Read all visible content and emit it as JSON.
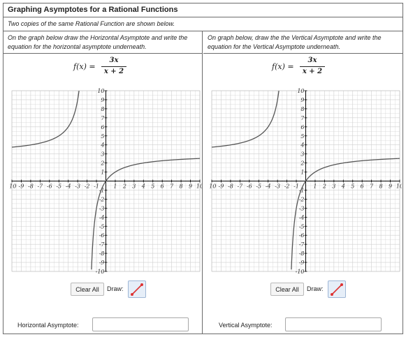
{
  "title": "Graphing Asymptotes for a Rational Functions",
  "subtitle": "Two copies of the same Rational Function are shown below.",
  "panels": [
    {
      "instruction": "On the graph below draw the Horizontal Asymptote and write the equation for the horizontal asymptote underneath.",
      "formula": {
        "lhs": "f(x) =",
        "numerator": "3x",
        "denominator": "x + 2"
      },
      "clear_label": "Clear All",
      "draw_label": "Draw:",
      "draw_tool_icon": "line-draw-icon",
      "answer_label": "Horizontal Asymptote:",
      "answer_value": ""
    },
    {
      "instruction": "On graph below, draw the the Vertical Asymptote and write the equation for the Vertical Asymptote underneath.",
      "formula": {
        "lhs": "f(x) =",
        "numerator": "3x",
        "denominator": "x + 2"
      },
      "clear_label": "Clear All",
      "draw_label": "Draw:",
      "draw_tool_icon": "line-draw-icon",
      "answer_label": "Vertical Asymptote:",
      "answer_value": ""
    }
  ],
  "graph": {
    "xlim": [
      -10,
      10
    ],
    "ylim": [
      -10,
      10
    ],
    "x_ticks": [
      -10,
      -9,
      -8,
      -7,
      -6,
      -5,
      -4,
      -3,
      -2,
      -1,
      1,
      2,
      3,
      4,
      5,
      6,
      7,
      8,
      9,
      10
    ],
    "y_ticks": [
      10,
      9,
      8,
      7,
      6,
      5,
      4,
      3,
      2,
      1,
      -1,
      -2,
      -3,
      -4,
      -5,
      -6,
      -7,
      -8,
      -9,
      -10
    ],
    "grid": true,
    "curve_color": "#555555",
    "axis_color": "#000000",
    "grid_color": "#cfcfcf"
  }
}
